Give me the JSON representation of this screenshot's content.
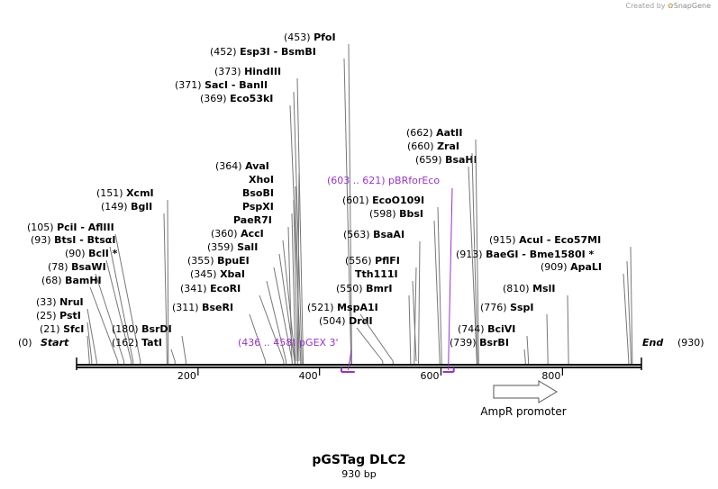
{
  "credit": {
    "prefix": "Created by",
    "brand": "SnapGene"
  },
  "plasmid": {
    "name": "pGSTag DLC2",
    "size_label": "930 bp"
  },
  "colors": {
    "line": "#000000",
    "leader": "#777777",
    "primer": "#9933cc",
    "feature": "#555555"
  },
  "ruler": {
    "start": 0,
    "end": 930,
    "ticks": [
      200,
      400,
      600,
      800
    ],
    "start_label": "Start",
    "start_pos": "(0)",
    "end_label": "End",
    "end_pos": "(930)"
  },
  "enzymes": [
    {
      "pos": "(21)",
      "name": "SfcI"
    },
    {
      "pos": "(25)",
      "name": "PstI"
    },
    {
      "pos": "(33)",
      "name": "NruI"
    },
    {
      "pos": "(68)",
      "name": "BamHI"
    },
    {
      "pos": "(78)",
      "name": "BsaWI"
    },
    {
      "pos": "(90)",
      "name": "BclI *"
    },
    {
      "pos": "(93)",
      "name": "BtsI  -  BtsαI"
    },
    {
      "pos": "(105)",
      "name": "PciI  -  AflIII"
    },
    {
      "pos": "(149)",
      "name": "BglI"
    },
    {
      "pos": "(151)",
      "name": "XcmI"
    },
    {
      "pos": "(162)",
      "name": "TatI"
    },
    {
      "pos": "(180)",
      "name": "BsrDI"
    },
    {
      "pos": "(311)",
      "name": "BseRI"
    },
    {
      "pos": "(341)",
      "name": "EcoRI"
    },
    {
      "pos": "(345)",
      "name": "XbaI"
    },
    {
      "pos": "(355)",
      "name": "BpuEI"
    },
    {
      "pos": "(359)",
      "name": "SalI"
    },
    {
      "pos": "(360)",
      "name": "AccI"
    },
    {
      "pos": "",
      "name": "PaeR7I"
    },
    {
      "pos": "",
      "name": "PspXI"
    },
    {
      "pos": "",
      "name": "BsoBI"
    },
    {
      "pos": "",
      "name": "XhoI"
    },
    {
      "pos": "(364)",
      "name": "AvaI"
    },
    {
      "pos": "(369)",
      "name": "Eco53kI"
    },
    {
      "pos": "(371)",
      "name": "SacI  -  BanII"
    },
    {
      "pos": "(373)",
      "name": "HindIII"
    },
    {
      "pos": "(452)",
      "name": "Esp3I  -  BsmBI"
    },
    {
      "pos": "(453)",
      "name": "PfoI"
    },
    {
      "pos": "(504)",
      "name": "DrdI"
    },
    {
      "pos": "(521)",
      "name": "MspA1I"
    },
    {
      "pos": "(550)",
      "name": "BmrI"
    },
    {
      "pos": "",
      "name": "Tth111I"
    },
    {
      "pos": "(556)",
      "name": "PflFI"
    },
    {
      "pos": "(563)",
      "name": "BsaAI"
    },
    {
      "pos": "(598)",
      "name": "BbsI"
    },
    {
      "pos": "(601)",
      "name": "EcoO109I"
    },
    {
      "pos": "(659)",
      "name": "BsaHI"
    },
    {
      "pos": "(660)",
      "name": "ZraI"
    },
    {
      "pos": "(662)",
      "name": "AatII"
    },
    {
      "pos": "(739)",
      "name": "BsrBI"
    },
    {
      "pos": "(744)",
      "name": "BciVI"
    },
    {
      "pos": "(776)",
      "name": "SspI"
    },
    {
      "pos": "(810)",
      "name": "MslI"
    },
    {
      "pos": "(909)",
      "name": "ApaLI"
    },
    {
      "pos": "(913)",
      "name": "BaeGI  -  Bme1580I *"
    },
    {
      "pos": "(915)",
      "name": "AcuI  -  Eco57MI"
    }
  ],
  "primers": [
    {
      "range": "(436 .. 458)",
      "name": "pGEX 3'"
    },
    {
      "range": "(603 .. 621)",
      "name": "pBRforEco"
    }
  ],
  "features": [
    {
      "name": "AmpR promoter"
    }
  ]
}
